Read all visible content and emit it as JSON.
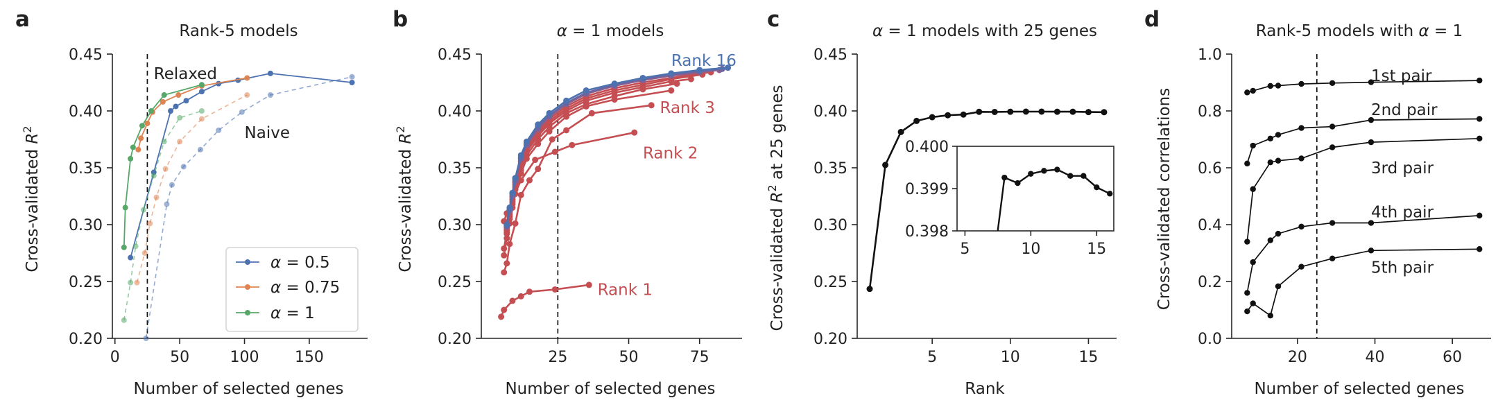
{
  "chart_data": [
    {
      "panel": "a",
      "type": "line",
      "title": "Rank-5 models",
      "xlabel": "Number of selected genes",
      "ylabel": "Cross-validated R²",
      "xlim": [
        -2,
        195
      ],
      "ylim": [
        0.2,
        0.45
      ],
      "xticks": [
        "0",
        "50",
        "100",
        "150"
      ],
      "yticks": [
        "0.20",
        "0.25",
        "0.30",
        "0.35",
        "0.40",
        "0.45"
      ],
      "vline_x": 25,
      "legend": {
        "position": "bottom-right",
        "entries": [
          "α = 0.5",
          "α = 0.75",
          "α = 1"
        ]
      },
      "annotations": [
        {
          "text": "Relaxed",
          "x": 30,
          "y": 0.433
        },
        {
          "text": "Naive",
          "x": 100,
          "y": 0.381
        }
      ],
      "series": [
        {
          "name": "α = 0.5",
          "style": "solid",
          "color": "#4C72B0",
          "x": [
            12,
            30,
            43,
            47,
            55,
            67,
            80,
            95,
            120,
            183
          ],
          "y": [
            0.271,
            0.346,
            0.4,
            0.404,
            0.409,
            0.417,
            0.424,
            0.427,
            0.433,
            0.425
          ]
        },
        {
          "name": "α = 0.75",
          "style": "solid",
          "color": "#DD8452",
          "x": [
            18,
            20,
            25,
            29,
            37,
            49,
            67,
            102
          ],
          "y": [
            0.366,
            0.376,
            0.389,
            0.399,
            0.408,
            0.414,
            0.422,
            0.429
          ]
        },
        {
          "name": "α = 1",
          "style": "solid",
          "color": "#55A868",
          "x": [
            7,
            8,
            12,
            14,
            21,
            28,
            38,
            67
          ],
          "y": [
            0.28,
            0.315,
            0.358,
            0.368,
            0.387,
            0.4,
            0.414,
            0.423
          ]
        },
        {
          "name": "",
          "style": "dashed",
          "color": "#4C72B0",
          "x": [
            24,
            40,
            44,
            53,
            66,
            80,
            98,
            120,
            183
          ],
          "y": [
            0.2,
            0.318,
            0.335,
            0.351,
            0.366,
            0.383,
            0.399,
            0.414,
            0.43
          ]
        },
        {
          "name": "",
          "style": "dashed",
          "color": "#DD8452",
          "x": [
            17,
            23,
            27,
            32,
            39,
            50,
            67,
            102
          ],
          "y": [
            0.249,
            0.275,
            0.301,
            0.324,
            0.349,
            0.373,
            0.393,
            0.414
          ]
        },
        {
          "name": "",
          "style": "dashed",
          "color": "#55A868",
          "x": [
            7,
            12,
            16,
            22,
            30,
            38,
            50,
            67
          ],
          "y": [
            0.216,
            0.249,
            0.281,
            0.313,
            0.343,
            0.373,
            0.394,
            0.4
          ]
        }
      ]
    },
    {
      "panel": "b",
      "type": "line",
      "title": "α = 1 models",
      "xlabel": "Number of selected genes",
      "ylabel": "Cross-validated R²",
      "xlim": [
        -2,
        90
      ],
      "ylim": [
        0.2,
        0.45
      ],
      "xticks": [
        "25",
        "50",
        "75"
      ],
      "yticks": [
        "0.20",
        "0.25",
        "0.30",
        "0.35",
        "0.40",
        "0.45"
      ],
      "vline_x": 25,
      "annotations": [
        {
          "text": "Rank 16",
          "x": 65,
          "y": 0.4445,
          "color": "#4C72B0"
        },
        {
          "text": "Rank 3",
          "x": 61,
          "y": 0.403,
          "color": "#C44E52"
        },
        {
          "text": "Rank 2",
          "x": 55,
          "y": 0.363,
          "color": "#C44E52"
        },
        {
          "text": "Rank 1",
          "x": 39,
          "y": 0.243,
          "color": "#C44E52"
        }
      ],
      "series": [
        {
          "name": "Rank 1",
          "color": "#C44E52",
          "x": [
            5,
            6,
            9,
            12,
            15,
            24,
            36
          ],
          "y": [
            0.219,
            0.225,
            0.233,
            0.237,
            0.241,
            0.243,
            0.247
          ]
        },
        {
          "name": "Rank 2",
          "color": "#C44E52",
          "x": [
            6,
            7,
            9,
            12,
            17,
            24,
            30,
            52
          ],
          "y": [
            0.303,
            0.31,
            0.322,
            0.339,
            0.357,
            0.364,
            0.37,
            0.381
          ]
        },
        {
          "name": "Rank 3",
          "color": "#C44E52",
          "x": [
            6,
            7,
            8,
            10,
            12,
            15,
            18,
            23,
            28,
            37,
            58
          ],
          "y": [
            0.258,
            0.266,
            0.283,
            0.301,
            0.326,
            0.339,
            0.349,
            0.375,
            0.383,
            0.398,
            0.405
          ]
        },
        {
          "name": "",
          "color": "#C44E52",
          "x": [
            6,
            7,
            8,
            9,
            10,
            12,
            14,
            18,
            22,
            28,
            35,
            45,
            65
          ],
          "y": [
            0.273,
            0.288,
            0.301,
            0.315,
            0.327,
            0.345,
            0.358,
            0.371,
            0.382,
            0.395,
            0.404,
            0.41,
            0.418
          ]
        },
        {
          "name": "",
          "color": "#C44E52",
          "x": [
            6,
            7,
            8,
            9,
            10,
            12,
            14,
            18,
            22,
            28,
            35,
            45,
            55,
            67
          ],
          "y": [
            0.279,
            0.293,
            0.305,
            0.318,
            0.331,
            0.348,
            0.361,
            0.375,
            0.386,
            0.398,
            0.406,
            0.413,
            0.419,
            0.424
          ]
        },
        {
          "name": "",
          "color": "#C44E52",
          "x": [
            7,
            8,
            9,
            10,
            12,
            14,
            18,
            22,
            28,
            35,
            45,
            55,
            65,
            72
          ],
          "y": [
            0.292,
            0.307,
            0.32,
            0.333,
            0.352,
            0.364,
            0.378,
            0.389,
            0.4,
            0.409,
            0.416,
            0.421,
            0.426,
            0.428
          ]
        },
        {
          "name": "",
          "color": "#C44E52",
          "x": [
            7,
            8,
            9,
            10,
            12,
            14,
            18,
            22,
            28,
            35,
            45,
            55,
            65,
            76
          ],
          "y": [
            0.295,
            0.309,
            0.322,
            0.335,
            0.354,
            0.366,
            0.38,
            0.391,
            0.402,
            0.411,
            0.418,
            0.423,
            0.428,
            0.432
          ]
        },
        {
          "name": "",
          "color": "#C44E52",
          "x": [
            7,
            8,
            9,
            10,
            12,
            14,
            18,
            22,
            28,
            35,
            45,
            55,
            65,
            72,
            79
          ],
          "y": [
            0.297,
            0.311,
            0.324,
            0.337,
            0.356,
            0.368,
            0.382,
            0.393,
            0.404,
            0.413,
            0.42,
            0.425,
            0.429,
            0.432,
            0.434
          ]
        },
        {
          "name": "",
          "color": "#8C5F8E",
          "x": [
            7,
            8,
            9,
            10,
            12,
            14,
            18,
            22,
            28,
            35,
            45,
            55,
            65,
            75,
            82
          ],
          "y": [
            0.298,
            0.312,
            0.325,
            0.338,
            0.358,
            0.37,
            0.384,
            0.395,
            0.406,
            0.415,
            0.422,
            0.427,
            0.431,
            0.434,
            0.436
          ]
        },
        {
          "name": "",
          "color": "#6C66A0",
          "x": [
            7,
            8,
            9,
            10,
            12,
            14,
            18,
            22,
            28,
            35,
            45,
            55,
            65,
            75,
            83
          ],
          "y": [
            0.299,
            0.313,
            0.327,
            0.34,
            0.359,
            0.371,
            0.386,
            0.396,
            0.407,
            0.416,
            0.423,
            0.428,
            0.432,
            0.435,
            0.437
          ]
        },
        {
          "name": "Rank 16",
          "color": "#4C72B0",
          "x": [
            7,
            8,
            9,
            10,
            12,
            14,
            18,
            22,
            28,
            35,
            45,
            55,
            65,
            75,
            85
          ],
          "y": [
            0.3,
            0.315,
            0.328,
            0.341,
            0.361,
            0.373,
            0.388,
            0.398,
            0.409,
            0.418,
            0.424,
            0.429,
            0.433,
            0.436,
            0.438
          ]
        }
      ]
    },
    {
      "panel": "c",
      "type": "line",
      "title": "α = 1 models with 25 genes",
      "xlabel": "Rank",
      "ylabel": "Cross-validated R² at 25 genes",
      "xlim": [
        0.2,
        16.8
      ],
      "ylim": [
        0.2,
        0.45
      ],
      "xticks": [
        "5",
        "10",
        "15"
      ],
      "yticks": [
        "0.20",
        "0.25",
        "0.30",
        "0.35",
        "0.40",
        "0.45"
      ],
      "series": [
        {
          "name": "",
          "color": "#111111",
          "x": [
            1,
            2,
            3,
            4,
            5,
            6,
            7,
            8,
            9,
            10,
            11,
            12,
            13,
            14,
            15,
            16
          ],
          "y": [
            0.2435,
            0.3525,
            0.3815,
            0.3912,
            0.3945,
            0.3962,
            0.3968,
            0.3992,
            0.3991,
            0.3993,
            0.3994,
            0.3994,
            0.3993,
            0.3993,
            0.399,
            0.3989
          ]
        }
      ],
      "inset": {
        "xlim": [
          4.4,
          16.3
        ],
        "ylim": [
          0.398,
          0.4
        ],
        "xticks": [
          "5",
          "10",
          "15"
        ],
        "yticks": [
          "0.398",
          "0.399",
          "0.400"
        ],
        "x": [
          7,
          8,
          9,
          10,
          11,
          12,
          13,
          14,
          15,
          16
        ],
        "y": [
          0.3968,
          0.39926,
          0.39913,
          0.39935,
          0.39942,
          0.39945,
          0.3993,
          0.3993,
          0.39903,
          0.39888
        ]
      }
    },
    {
      "panel": "d",
      "type": "line",
      "title": "Rank-5 models with α = 1",
      "xlabel": "Number of selected genes",
      "ylabel": "Cross-validated correlations",
      "xlim": [
        3,
        70
      ],
      "ylim": [
        0.0,
        1.0
      ],
      "xticks": [
        "20",
        "40",
        "60"
      ],
      "yticks": [
        "0.0",
        "0.2",
        "0.4",
        "0.6",
        "0.8",
        "1.0"
      ],
      "vline_x": 25,
      "annotations": [
        {
          "text": "1st pair",
          "x": 39,
          "y": 0.925
        },
        {
          "text": "2nd pair",
          "x": 39,
          "y": 0.805
        },
        {
          "text": "3rd pair",
          "x": 39,
          "y": 0.6
        },
        {
          "text": "4th pair",
          "x": 39,
          "y": 0.445
        },
        {
          "text": "5th pair",
          "x": 39,
          "y": 0.25
        }
      ],
      "series": [
        {
          "name": "",
          "color": "#111111",
          "x": [
            7,
            8.5,
            13,
            15,
            21,
            29,
            39,
            67
          ],
          "y": [
            0.865,
            0.871,
            0.888,
            0.889,
            0.895,
            0.898,
            0.901,
            0.907
          ]
        },
        {
          "name": "",
          "color": "#111111",
          "x": [
            7,
            8.5,
            13,
            15,
            21,
            29,
            39,
            67
          ],
          "y": [
            0.615,
            0.678,
            0.703,
            0.716,
            0.74,
            0.745,
            0.768,
            0.772
          ]
        },
        {
          "name": "",
          "color": "#111111",
          "x": [
            7,
            8.5,
            13,
            15,
            21,
            29,
            39,
            67
          ],
          "y": [
            0.34,
            0.525,
            0.619,
            0.625,
            0.633,
            0.672,
            0.69,
            0.703
          ]
        },
        {
          "name": "",
          "color": "#111111",
          "x": [
            7,
            8.5,
            13,
            15,
            21,
            29,
            39,
            67
          ],
          "y": [
            0.16,
            0.268,
            0.345,
            0.368,
            0.393,
            0.406,
            0.406,
            0.432
          ]
        },
        {
          "name": "",
          "color": "#111111",
          "x": [
            7,
            8.5,
            13,
            15,
            21,
            29,
            39,
            67
          ],
          "y": [
            0.095,
            0.123,
            0.08,
            0.183,
            0.252,
            0.281,
            0.309,
            0.314
          ]
        }
      ]
    }
  ]
}
